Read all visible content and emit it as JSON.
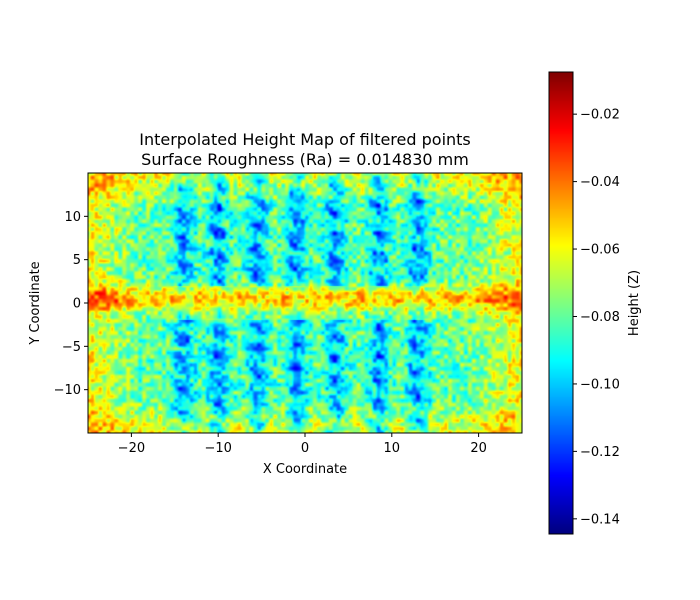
{
  "chart_data": {
    "type": "heatmap",
    "title_line1": "Interpolated Height Map of filtered points",
    "title_line2": "Surface Roughness (Ra) = 0.014830 mm",
    "xlabel": "X Coordinate",
    "ylabel": "Y Coordinate",
    "xlim": [
      -25,
      25
    ],
    "ylim": [
      -15,
      15
    ],
    "x_ticks": [
      -20,
      -10,
      0,
      10,
      20
    ],
    "y_ticks": [
      10,
      5,
      0,
      -5,
      -10
    ],
    "x_tick_labels": [
      "−20",
      "−10",
      "0",
      "10",
      "20"
    ],
    "y_tick_labels": [
      "10",
      "5",
      "0",
      "−5",
      "−10"
    ],
    "colorbar": {
      "label": "Height (Z)",
      "colormap": "jet",
      "range": [
        -0.1445,
        -0.0075
      ],
      "ticks": [
        -0.02,
        -0.04,
        -0.06,
        -0.08,
        -0.1,
        -0.12,
        -0.14
      ],
      "tick_labels": [
        "−0.02",
        "−0.04",
        "−0.06",
        "−0.08",
        "−0.10",
        "−0.12",
        "−0.14"
      ]
    },
    "surface_model": {
      "base_height": -0.08,
      "vertical_stripe_x": [
        -14,
        -10,
        -5.5,
        -1,
        3.5,
        8.5,
        13
      ],
      "stripe_depth": -0.035,
      "ridge_y": [
        0,
        1
      ],
      "ridge_height": 0.03,
      "noise_amplitude": 0.018
    }
  }
}
